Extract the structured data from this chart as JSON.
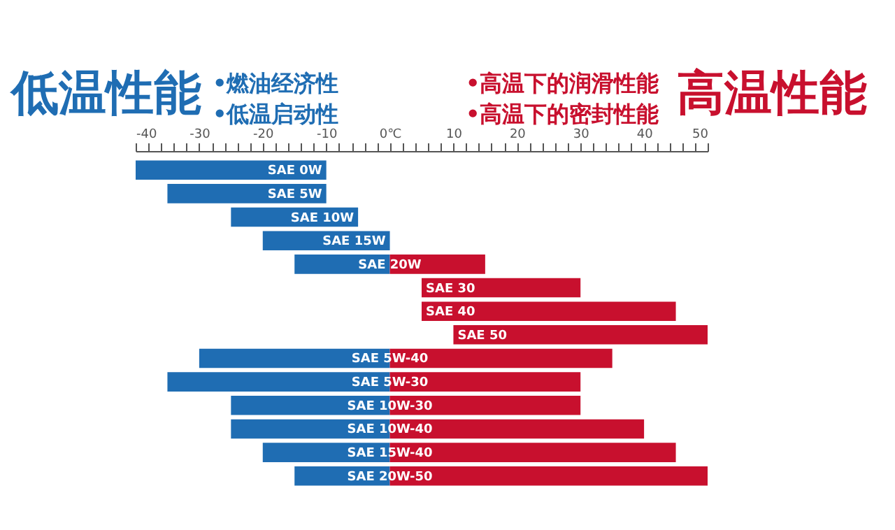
{
  "chart_data": {
    "type": "bar",
    "orientation": "horizontal",
    "annotations": [
      "低温性能",
      "•燃油经济性",
      "•低温启动性",
      "•高温下的润滑性能",
      "•高温下的密封性能",
      "高温性能"
    ],
    "categories": [
      "SAE 0W",
      "SAE 5W",
      "SAE 10W",
      "SAE 15W",
      "SAE 20W",
      "SAE 30",
      "SAE 40",
      "SAE 50",
      "SAE 5W-40",
      "SAE 5W-30",
      "SAE 10W-30",
      "SAE 10W-40",
      "SAE 15W-40",
      "SAE 20W-50"
    ],
    "series": [
      {
        "color": "#1f6db3",
        "base": [
          -40,
          -35,
          -25,
          -20,
          -15,
          null,
          null,
          null,
          -30,
          -35,
          -25,
          -25,
          -20,
          -15
        ],
        "values": [
          30,
          25,
          20,
          20,
          15,
          null,
          null,
          null,
          30,
          35,
          25,
          25,
          20,
          15
        ]
      },
      {
        "color": "#c8102e",
        "base": [
          null,
          null,
          null,
          null,
          0,
          5,
          5,
          10,
          0,
          0,
          0,
          0,
          0,
          0
        ],
        "values": [
          null,
          null,
          null,
          null,
          15,
          25,
          40,
          40,
          35,
          30,
          30,
          40,
          45,
          50
        ]
      }
    ],
    "xlim": [
      -40,
      50
    ],
    "xticks": [
      -40,
      {
        "value": -38,
        "label": null
      },
      {
        "value": -36,
        "label": null
      },
      {
        "value": -34,
        "label": null
      },
      {
        "value": -32,
        "label": null
      },
      -30,
      {
        "value": -28,
        "label": null
      },
      {
        "value": -26,
        "label": null
      },
      {
        "value": -24,
        "label": null
      },
      {
        "value": -22,
        "label": null
      },
      -20,
      {
        "value": -18,
        "label": null
      },
      {
        "value": -16,
        "label": null
      },
      {
        "value": -14,
        "label": null
      },
      {
        "value": -12,
        "label": null
      },
      -10,
      {
        "value": -8,
        "label": null
      },
      {
        "value": -6,
        "label": null
      },
      {
        "value": -4,
        "label": null
      },
      {
        "value": -2,
        "label": null
      },
      {
        "value": 0,
        "label": "0℃"
      },
      {
        "value": 2,
        "label": null
      },
      {
        "value": 4,
        "label": null
      },
      {
        "value": 6,
        "label": null
      },
      {
        "value": 8,
        "label": null
      },
      10,
      {
        "value": 12,
        "label": null
      },
      {
        "value": 14,
        "label": null
      },
      {
        "value": 16,
        "label": null
      },
      {
        "value": 18,
        "label": null
      },
      20,
      {
        "value": 22,
        "label": null
      },
      {
        "value": 24,
        "label": null
      },
      {
        "value": 26,
        "label": null
      },
      {
        "value": 28,
        "label": null
      },
      30,
      {
        "value": 32,
        "label": null
      },
      {
        "value": 34,
        "label": null
      },
      {
        "value": 36,
        "label": null
      },
      {
        "value": 38,
        "label": null
      },
      40,
      {
        "value": 42,
        "label": null
      },
      {
        "value": 44,
        "label": null
      },
      {
        "value": 46,
        "label": null
      },
      {
        "value": 48,
        "label": null
      },
      50
    ],
    "grid": false
  }
}
